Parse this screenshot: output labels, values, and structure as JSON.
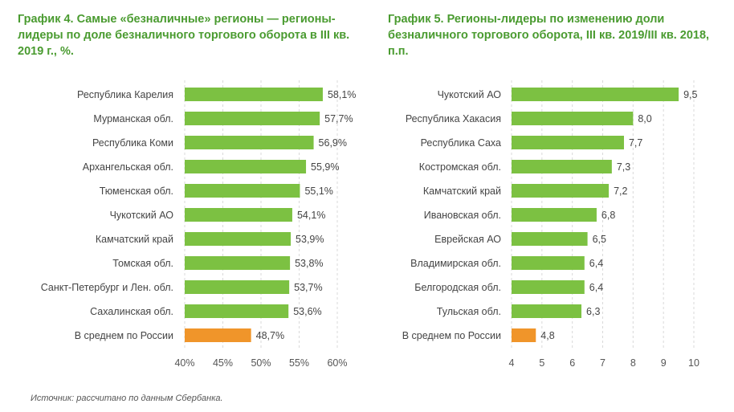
{
  "chart_data": [
    {
      "type": "bar",
      "orientation": "horizontal",
      "title": "График 4. Самые «безналичные» регионы — регионы-лидеры по доле безналичного торгового оборота в III кв. 2019 г., %.",
      "categories": [
        "Республика Карелия",
        "Мурманская обл.",
        "Республика Коми",
        "Архангельская обл.",
        "Тюменская обл.",
        "Чукотский АО",
        "Камчатский край",
        "Томская обл.",
        "Санкт-Петербург и Лен. обл.",
        "Сахалинская обл.",
        "В среднем по России"
      ],
      "values": [
        58.1,
        57.7,
        56.9,
        55.9,
        55.1,
        54.1,
        53.9,
        53.8,
        53.7,
        53.6,
        48.7
      ],
      "value_labels": [
        "58,1%",
        "57,7%",
        "56,9%",
        "55,9%",
        "55,1%",
        "54,1%",
        "53,9%",
        "53,8%",
        "53,7%",
        "53,6%",
        "48,7%"
      ],
      "xlim": [
        40,
        60
      ],
      "ticks": [
        40,
        45,
        50,
        55,
        60
      ],
      "tick_labels": [
        "40%",
        "45%",
        "50%",
        "55%",
        "60%"
      ],
      "highlight_index": 10,
      "xlabel": "",
      "ylabel": ""
    },
    {
      "type": "bar",
      "orientation": "horizontal",
      "title": "График 5. Регионы-лидеры по изменению доли безналичного торгового оборота, III кв. 2019/III кв. 2018, п.п.",
      "categories": [
        "Чукотский АО",
        "Республика Хакасия",
        "Республика Саха",
        "Костромская обл.",
        "Камчатский край",
        "Ивановская обл.",
        "Еврейская АО",
        "Владимирская обл.",
        "Белгородская обл.",
        "Тульская обл.",
        "В среднем по России"
      ],
      "values": [
        9.5,
        8.0,
        7.7,
        7.3,
        7.2,
        6.8,
        6.5,
        6.4,
        6.4,
        6.3,
        4.8
      ],
      "value_labels": [
        "9,5",
        "8,0",
        "7,7",
        "7,3",
        "7,2",
        "6,8",
        "6,5",
        "6,4",
        "6,4",
        "6,3",
        "4,8"
      ],
      "xlim": [
        4,
        10
      ],
      "ticks": [
        4,
        5,
        6,
        7,
        8,
        9,
        10
      ],
      "tick_labels": [
        "4",
        "5",
        "6",
        "7",
        "8",
        "9",
        "10"
      ],
      "highlight_index": 10,
      "xlabel": "",
      "ylabel": ""
    }
  ],
  "colors": {
    "bar": "#7cc142",
    "highlight": "#f0952a",
    "title": "#4a9b30"
  },
  "source": "Источник: рассчитано по данным Сбербанка."
}
